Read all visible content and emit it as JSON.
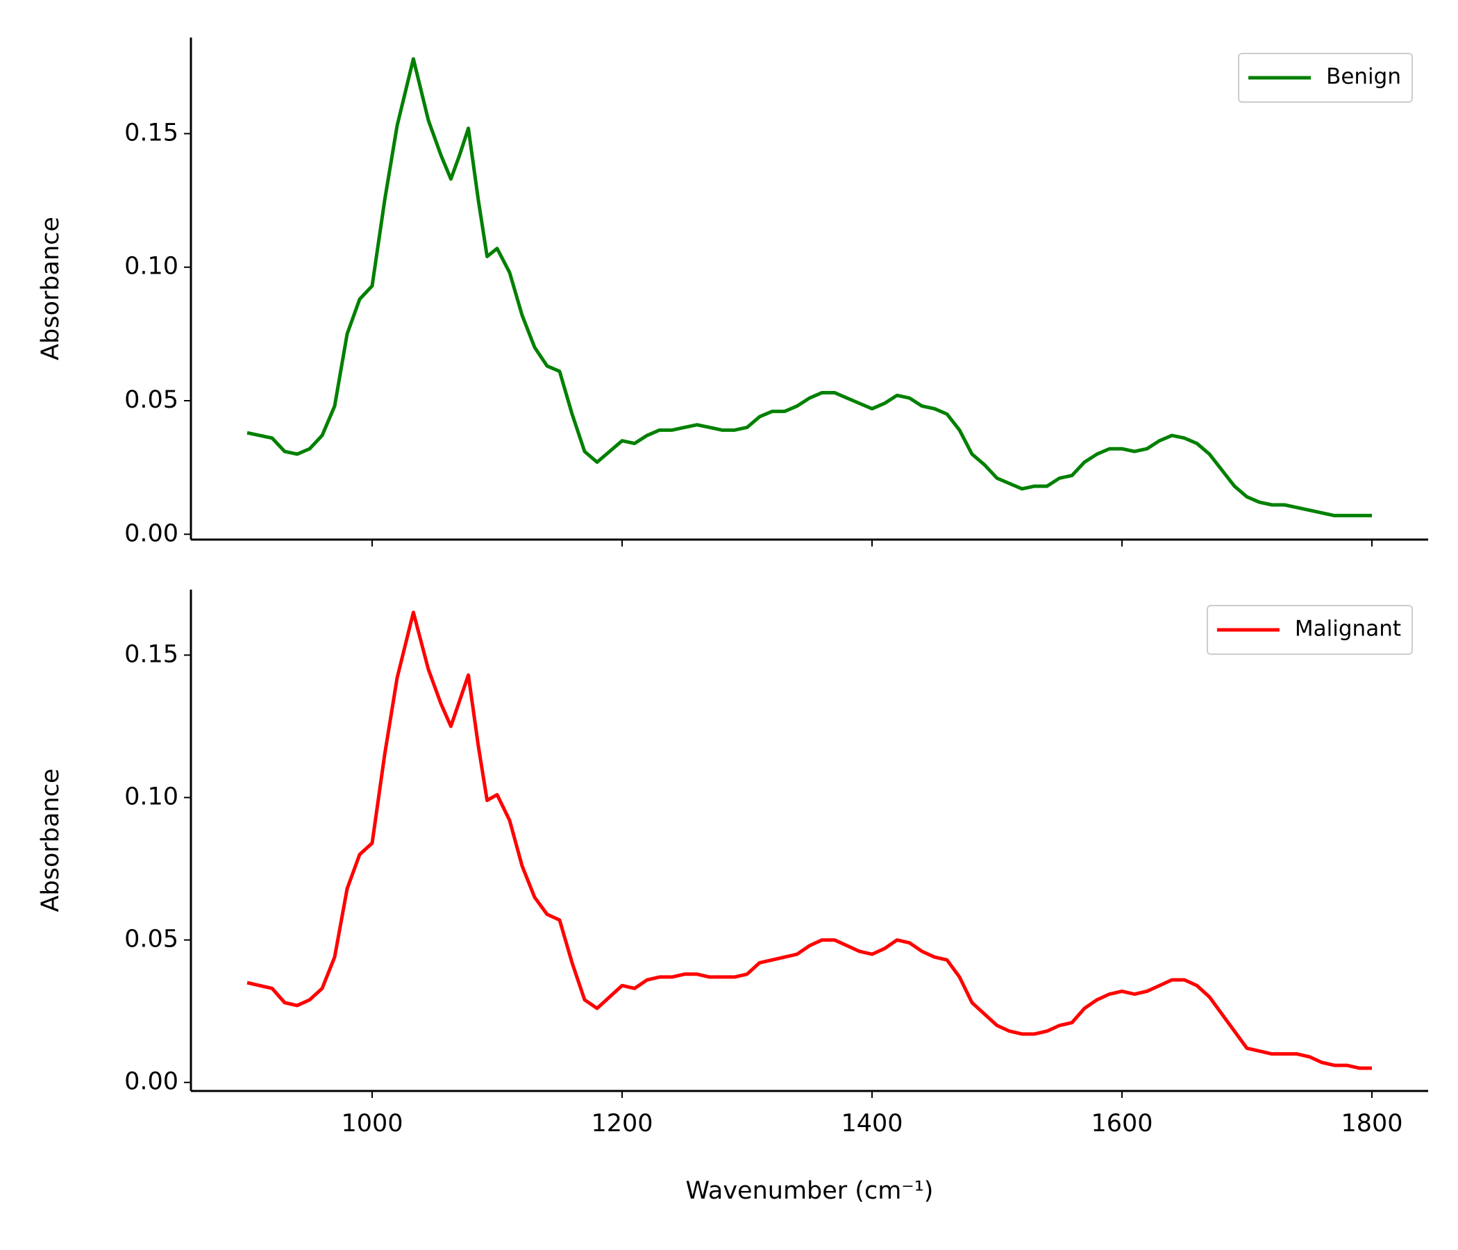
{
  "chart_data": [
    {
      "type": "line",
      "ylabel": "Absorbance",
      "legend": "upper right",
      "xlim": [
        855,
        1845
      ],
      "xticks": [
        1000,
        1200,
        1400,
        1600,
        1800
      ],
      "ylim": [
        -0.002,
        0.186
      ],
      "yticks": [
        {
          "value": 0,
          "label": "0.00"
        },
        0.05,
        {
          "value": 0.1,
          "label": "0.10"
        },
        0.15
      ],
      "x": [
        900,
        910,
        920,
        930,
        940,
        950,
        960,
        970,
        980,
        990,
        1000,
        1010,
        1020,
        1033,
        1045,
        1055,
        1063,
        1070,
        1077,
        1085,
        1092,
        1100,
        1110,
        1120,
        1130,
        1140,
        1150,
        1160,
        1170,
        1180,
        1190,
        1200,
        1210,
        1220,
        1230,
        1240,
        1250,
        1260,
        1270,
        1280,
        1290,
        1300,
        1310,
        1320,
        1330,
        1340,
        1350,
        1360,
        1370,
        1380,
        1390,
        1400,
        1410,
        1420,
        1430,
        1440,
        1450,
        1460,
        1470,
        1480,
        1490,
        1500,
        1510,
        1520,
        1530,
        1540,
        1550,
        1560,
        1570,
        1580,
        1590,
        1600,
        1610,
        1620,
        1630,
        1640,
        1650,
        1660,
        1670,
        1680,
        1690,
        1700,
        1710,
        1720,
        1730,
        1740,
        1750,
        1760,
        1770,
        1780,
        1790,
        1800
      ],
      "series": [
        {
          "name": "Benign",
          "color": "#008000",
          "values": [
            0.038,
            0.037,
            0.036,
            0.031,
            0.03,
            0.032,
            0.037,
            0.048,
            0.075,
            0.088,
            0.093,
            0.125,
            0.153,
            0.178,
            0.155,
            0.142,
            0.133,
            0.142,
            0.152,
            0.125,
            0.104,
            0.107,
            0.098,
            0.082,
            0.07,
            0.063,
            0.061,
            0.045,
            0.031,
            0.027,
            0.031,
            0.035,
            0.034,
            0.037,
            0.039,
            0.039,
            0.04,
            0.041,
            0.04,
            0.039,
            0.039,
            0.04,
            0.044,
            0.046,
            0.046,
            0.048,
            0.051,
            0.053,
            0.053,
            0.051,
            0.049,
            0.047,
            0.049,
            0.052,
            0.051,
            0.048,
            0.047,
            0.045,
            0.039,
            0.03,
            0.026,
            0.021,
            0.019,
            0.017,
            0.018,
            0.018,
            0.021,
            0.022,
            0.027,
            0.03,
            0.032,
            0.032,
            0.031,
            0.032,
            0.035,
            0.037,
            0.036,
            0.034,
            0.03,
            0.024,
            0.018,
            0.014,
            0.012,
            0.011,
            0.011,
            0.01,
            0.009,
            0.008,
            0.007,
            0.007,
            0.007,
            0.007
          ]
        }
      ]
    },
    {
      "type": "line",
      "ylabel": "Absorbance",
      "xlabel": "Wavenumber (cm⁻¹)",
      "legend": "upper right",
      "xlim": [
        855,
        1845
      ],
      "xticks": [
        1000,
        1200,
        1400,
        1600,
        1800
      ],
      "ylim": [
        -0.003,
        0.173
      ],
      "yticks": [
        {
          "value": 0,
          "label": "0.00"
        },
        0.05,
        {
          "value": 0.1,
          "label": "0.10"
        },
        0.15
      ],
      "x": [
        900,
        910,
        920,
        930,
        940,
        950,
        960,
        970,
        980,
        990,
        1000,
        1010,
        1020,
        1033,
        1045,
        1055,
        1063,
        1070,
        1077,
        1085,
        1092,
        1100,
        1110,
        1120,
        1130,
        1140,
        1150,
        1160,
        1170,
        1180,
        1190,
        1200,
        1210,
        1220,
        1230,
        1240,
        1250,
        1260,
        1270,
        1280,
        1290,
        1300,
        1310,
        1320,
        1330,
        1340,
        1350,
        1360,
        1370,
        1380,
        1390,
        1400,
        1410,
        1420,
        1430,
        1440,
        1450,
        1460,
        1470,
        1480,
        1490,
        1500,
        1510,
        1520,
        1530,
        1540,
        1550,
        1560,
        1570,
        1580,
        1590,
        1600,
        1610,
        1620,
        1630,
        1640,
        1650,
        1660,
        1670,
        1680,
        1690,
        1700,
        1710,
        1720,
        1730,
        1740,
        1750,
        1760,
        1770,
        1780,
        1790,
        1800
      ],
      "series": [
        {
          "name": "Malignant",
          "color": "#ff0000",
          "values": [
            0.035,
            0.034,
            0.033,
            0.028,
            0.027,
            0.029,
            0.033,
            0.044,
            0.068,
            0.08,
            0.084,
            0.115,
            0.142,
            0.165,
            0.145,
            0.133,
            0.125,
            0.134,
            0.143,
            0.118,
            0.099,
            0.101,
            0.092,
            0.076,
            0.065,
            0.059,
            0.057,
            0.042,
            0.029,
            0.026,
            0.03,
            0.034,
            0.033,
            0.036,
            0.037,
            0.037,
            0.038,
            0.038,
            0.037,
            0.037,
            0.037,
            0.038,
            0.042,
            0.043,
            0.044,
            0.045,
            0.048,
            0.05,
            0.05,
            0.048,
            0.046,
            0.045,
            0.047,
            0.05,
            0.049,
            0.046,
            0.044,
            0.043,
            0.037,
            0.028,
            0.024,
            0.02,
            0.018,
            0.017,
            0.017,
            0.018,
            0.02,
            0.021,
            0.026,
            0.029,
            0.031,
            0.032,
            0.031,
            0.032,
            0.034,
            0.036,
            0.036,
            0.034,
            0.03,
            0.024,
            0.018,
            0.012,
            0.011,
            0.01,
            0.01,
            0.01,
            0.009,
            0.007,
            0.006,
            0.006,
            0.005,
            0.005
          ]
        }
      ]
    }
  ]
}
